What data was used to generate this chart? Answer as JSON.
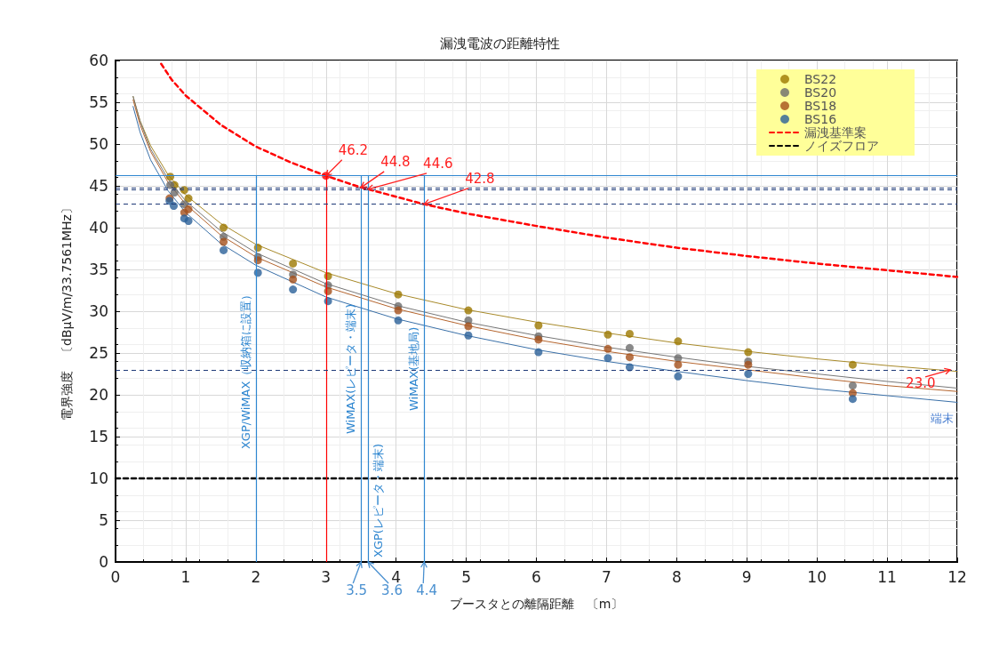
{
  "chart_data": {
    "type": "scatter",
    "title": "漏洩電波の距離特性",
    "xlabel": "ブースタとの離隔距離　〔m〕",
    "ylabel": "電界強度　〔dBμV/m/33.7561MHz〕",
    "xlim": [
      0,
      12
    ],
    "xticks": [
      0,
      1,
      2,
      3,
      4,
      5,
      6,
      7,
      8,
      9,
      10,
      11,
      12
    ],
    "ylim": [
      0,
      60
    ],
    "yticks": [
      0,
      5,
      10,
      15,
      20,
      25,
      30,
      35,
      40,
      45,
      50,
      55,
      60
    ],
    "grid": true,
    "legend": "top right",
    "marker": "circle",
    "series": [
      {
        "name": "BS22",
        "color": "#9c7800",
        "x": [
          0.78,
          0.84,
          0.98,
          1.04,
          1.54,
          2.03,
          2.53,
          3.03,
          4.03,
          5.03,
          6.03,
          7.02,
          7.33,
          8.02,
          9.02,
          10.51
        ],
        "values": [
          46.1,
          45.1,
          44.5,
          43.5,
          40.0,
          37.6,
          35.7,
          34.2,
          32.0,
          30.1,
          28.3,
          27.2,
          27.3,
          26.4,
          25.1,
          23.6
        ]
      },
      {
        "name": "BS20",
        "color": "#6b6b6b",
        "x": [
          0.78,
          0.84,
          0.98,
          1.54,
          2.03,
          2.53,
          3.03,
          4.03,
          5.03,
          6.03,
          7.33,
          8.02,
          9.02,
          10.51
        ],
        "values": [
          45.1,
          44.2,
          42.8,
          38.9,
          36.5,
          34.4,
          33.1,
          30.6,
          28.9,
          27.0,
          25.6,
          24.4,
          24.0,
          21.1
        ]
      },
      {
        "name": "BS18",
        "color": "#a5501a",
        "x": [
          0.77,
          0.98,
          1.04,
          1.54,
          2.03,
          2.53,
          3.03,
          4.03,
          5.03,
          6.03,
          7.02,
          7.33,
          8.02,
          9.02,
          10.51
        ],
        "values": [
          43.5,
          41.8,
          42.2,
          38.3,
          36.1,
          33.8,
          32.4,
          30.1,
          28.2,
          26.6,
          25.5,
          24.5,
          23.6,
          23.6,
          20.2
        ]
      },
      {
        "name": "BS16",
        "color": "#2a6099",
        "x": [
          0.77,
          0.83,
          0.98,
          1.04,
          1.54,
          2.03,
          2.53,
          3.03,
          4.03,
          5.03,
          6.03,
          7.02,
          7.33,
          8.02,
          9.02,
          10.51
        ],
        "values": [
          43.2,
          42.6,
          41.1,
          40.8,
          37.3,
          34.6,
          32.6,
          31.2,
          28.9,
          27.1,
          25.1,
          24.4,
          23.3,
          22.2,
          22.5,
          19.5
        ]
      },
      {
        "type": "line",
        "line_style": "solid",
        "marker": "none",
        "color": "#a88a2a",
        "x": [
          0.25,
          0.35,
          0.5,
          0.75,
          1,
          1.5,
          2,
          3,
          4,
          5,
          6,
          7,
          8,
          9,
          10,
          11,
          12
        ],
        "values": [
          55.7,
          52.8,
          49.8,
          46.3,
          43.9,
          40.5,
          38.0,
          34.6,
          32.1,
          30.2,
          28.7,
          27.4,
          26.2,
          25.2,
          24.3,
          23.5,
          22.8
        ]
      },
      {
        "type": "line",
        "line_style": "solid",
        "marker": "none",
        "color": "#777777",
        "x": [
          0.25,
          0.35,
          0.5,
          0.75,
          1,
          1.5,
          2,
          3,
          4,
          5,
          6,
          7,
          8,
          9,
          10,
          11,
          12
        ],
        "values": [
          55.7,
          52.7,
          49.4,
          45.8,
          43.2,
          39.6,
          37.0,
          33.3,
          30.7,
          28.7,
          27.1,
          25.7,
          24.5,
          23.4,
          22.5,
          21.6,
          20.8
        ]
      },
      {
        "type": "line",
        "line_style": "solid",
        "marker": "none",
        "color": "#b5652e",
        "x": [
          0.25,
          0.35,
          0.5,
          0.75,
          1,
          1.5,
          2,
          3,
          4,
          5,
          6,
          7,
          8,
          9,
          10,
          11,
          12
        ],
        "values": [
          55.3,
          52.3,
          49.1,
          45.4,
          42.8,
          39.1,
          36.5,
          32.9,
          30.3,
          28.3,
          26.6,
          25.2,
          24.0,
          23.0,
          22.0,
          21.1,
          20.4
        ]
      },
      {
        "type": "line",
        "line_style": "solid",
        "marker": "none",
        "color": "#3a70a8",
        "x": [
          0.25,
          0.35,
          0.5,
          0.75,
          1,
          1.5,
          2,
          3,
          4,
          5,
          6,
          7,
          8,
          9,
          10,
          11,
          12
        ],
        "values": [
          54.5,
          51.4,
          48.1,
          44.4,
          41.8,
          38.1,
          35.5,
          31.7,
          29.1,
          27.1,
          25.4,
          24.0,
          22.8,
          21.7,
          20.7,
          19.9,
          19.1
        ]
      },
      {
        "name": "漏洩基準案",
        "type": "line",
        "line_style": "dashed",
        "marker": "none",
        "color": "#ff0000",
        "x": [
          0.65,
          0.8,
          1,
          1.5,
          2,
          2.5,
          3,
          3.5,
          3.6,
          4,
          4.4,
          5,
          6,
          7,
          8,
          9,
          10,
          11,
          12
        ],
        "values": [
          59.6,
          57.7,
          55.8,
          52.3,
          49.7,
          47.8,
          46.2,
          44.8,
          44.6,
          43.7,
          42.8,
          41.7,
          40.2,
          38.8,
          37.6,
          36.6,
          35.7,
          34.9,
          34.1
        ]
      },
      {
        "name": "ノイズフロア",
        "type": "line",
        "line_style": "dashed",
        "marker": "none",
        "color": "#000000",
        "x": [
          0,
          12
        ],
        "values": [
          10,
          10
        ]
      },
      {
        "type": "scatter",
        "color": "#ff0000",
        "x": [
          3
        ],
        "values": [
          46.2
        ]
      }
    ],
    "ref_lines": [
      {
        "axis": "x",
        "value": 2,
        "label": "XGP/WiMAX（収納箱に設置）",
        "color": "#2e86d0",
        "line_style": "solid"
      },
      {
        "axis": "x",
        "value": 3,
        "label": null,
        "color": "#ff0000",
        "line_style": "solid"
      },
      {
        "axis": "x",
        "value": 3.5,
        "label": "WiMAX(レピータ・端末)",
        "color": "#2e86d0",
        "line_style": "solid"
      },
      {
        "axis": "x",
        "value": 3.6,
        "label": "XGP(レピータ・端末)",
        "color": "#2e86d0",
        "line_style": "solid"
      },
      {
        "axis": "x",
        "value": 4.4,
        "label": "WiMAX(基地局)",
        "color": "#2e86d0",
        "line_style": "solid"
      },
      {
        "axis": "y",
        "value": 46.2,
        "label": null,
        "color": "#2e86d0",
        "line_style": "solid"
      },
      {
        "axis": "y",
        "value": 44.8,
        "label": null,
        "color": "#1f3a78",
        "line_style": "dashed"
      },
      {
        "axis": "y",
        "value": 44.6,
        "label": null,
        "color": "#1f3a78",
        "line_style": "dashed"
      },
      {
        "axis": "y",
        "value": 42.8,
        "label": null,
        "color": "#1f3a78",
        "line_style": "dashed"
      },
      {
        "axis": "y",
        "value": 23.0,
        "label": null,
        "color": "#1f3a78",
        "line_style": "dashed"
      }
    ],
    "annotations": [
      {
        "text": "46.2",
        "x": 3,
        "y": 46.2
      },
      {
        "text": "44.8",
        "x": 3.5,
        "y": 44.8
      },
      {
        "text": "44.6",
        "x": 3.6,
        "y": 44.6
      },
      {
        "text": "42.8",
        "x": 4.4,
        "y": 42.8
      },
      {
        "text": "23.0",
        "x": 11.9,
        "y": 23.0
      },
      {
        "text": "3.5",
        "x": 3.5,
        "y": 0
      },
      {
        "text": "3.6",
        "x": 3.6,
        "y": 0
      },
      {
        "text": "4.4",
        "x": 4.4,
        "y": 0
      },
      "端末"
    ]
  }
}
